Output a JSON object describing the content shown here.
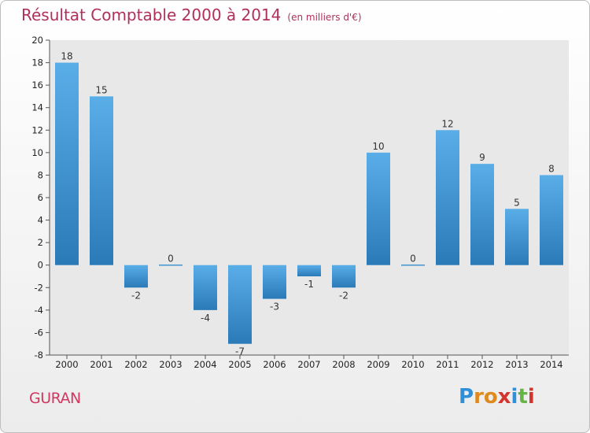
{
  "header": {
    "title": "Résultat Comptable 2000 à 2014",
    "subtitle": "(en milliers d'€)"
  },
  "footer": {
    "commune": "GURAN",
    "logo_text": "Proxiti"
  },
  "colors": {
    "bar_light": "#5aaee8",
    "bar_dark": "#2a7ab8",
    "title": "#b0305a",
    "commune": "#d1375f",
    "plot_bg": "#e8e8e8"
  },
  "chart_data": {
    "type": "bar",
    "categories": [
      "2000",
      "2001",
      "2002",
      "2003",
      "2004",
      "2005",
      "2006",
      "2007",
      "2008",
      "2009",
      "2010",
      "2011",
      "2012",
      "2013",
      "2014"
    ],
    "values": [
      18,
      15,
      -2,
      0,
      -4,
      -7,
      -3,
      -1,
      -2,
      10,
      0,
      12,
      9,
      5,
      8
    ],
    "data_labels": [
      "18",
      "15",
      "-2",
      "0",
      "-4",
      "-7",
      "-3",
      "-1",
      "-2",
      "10",
      "0",
      "12",
      "9",
      "5",
      "8"
    ],
    "ylim": [
      -8,
      20
    ],
    "yticks": [
      -8,
      -6,
      -4,
      -2,
      0,
      2,
      4,
      6,
      8,
      10,
      12,
      14,
      16,
      18,
      20
    ],
    "grid": false
  }
}
